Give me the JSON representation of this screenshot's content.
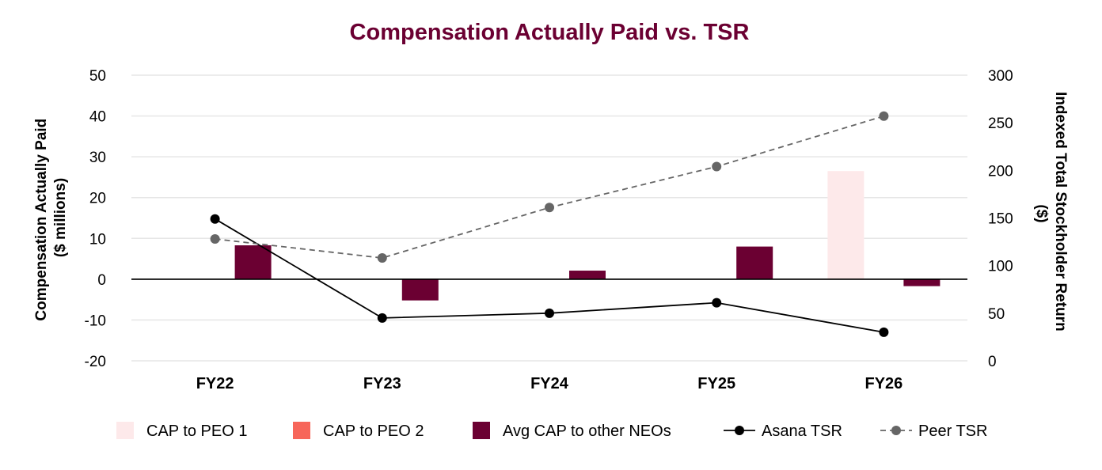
{
  "chart_data": {
    "type": "bar",
    "title": "Compensation Actually Paid vs. TSR",
    "categories": [
      "FY22",
      "FY23",
      "FY24",
      "FY25",
      "FY26"
    ],
    "ylabel_lines": [
      "Compensation Actually Paid",
      "($ millions)"
    ],
    "y2label_lines": [
      "Indexed Total Stockholder Return",
      "($)"
    ],
    "ylim": [
      -20,
      50
    ],
    "y2lim": [
      0,
      300
    ],
    "yticks": [
      "50",
      "40",
      "30",
      "20",
      "10",
      "0",
      "-10",
      "-20"
    ],
    "y2ticks": [
      "300",
      "250",
      "200",
      "150",
      "100",
      "50",
      "0"
    ],
    "grid": true,
    "legend_position": "bottom",
    "series": [
      {
        "name": "CAP to PEO 1",
        "kind": "bar",
        "axis": "left",
        "color": "#fde9ea",
        "values": [
          null,
          null,
          null,
          null,
          26.5
        ]
      },
      {
        "name": "CAP to PEO 2",
        "kind": "bar",
        "axis": "left",
        "color": "#f7665a",
        "values": [
          null,
          null,
          null,
          null,
          null
        ]
      },
      {
        "name": "Avg CAP to other NEOs",
        "kind": "bar",
        "axis": "left",
        "color": "#6b0032",
        "values": [
          8.3,
          -5.2,
          2.1,
          8.0,
          -1.7
        ]
      },
      {
        "name": "Asana TSR",
        "kind": "line",
        "axis": "right",
        "color": "#000000",
        "dashed": false,
        "values": [
          149,
          45,
          50,
          61,
          30
        ]
      },
      {
        "name": "Peer TSR",
        "kind": "line",
        "axis": "right",
        "color": "#666666",
        "dashed": true,
        "values": [
          128,
          108,
          161,
          204,
          257
        ]
      }
    ],
    "colors": {
      "title": "#6b0032",
      "grid": "#e6e6e6",
      "zero_line": "#000000"
    }
  }
}
